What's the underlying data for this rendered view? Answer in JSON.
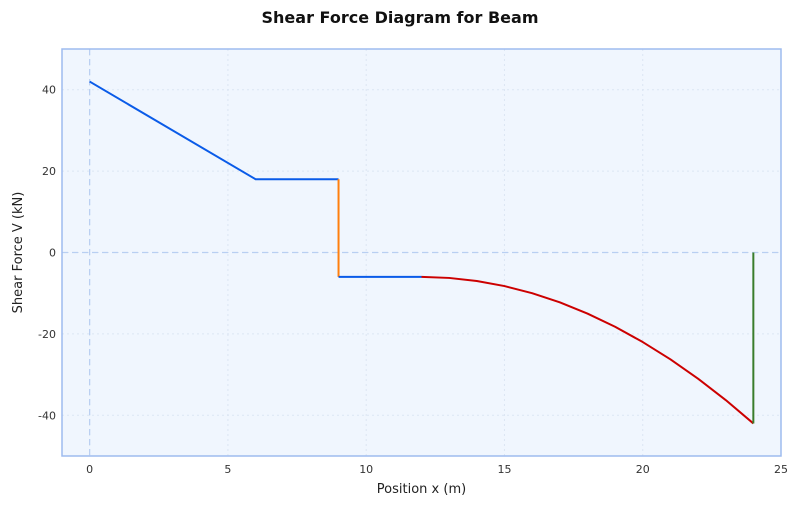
{
  "chart_data": {
    "type": "line",
    "title": "Shear Force Diagram for Beam",
    "xlabel": "Position x (m)",
    "ylabel": "Shear Force V (kN)",
    "xlim": [
      -1,
      25
    ],
    "ylim": [
      -50,
      50
    ],
    "xticks": [
      0,
      5,
      10,
      15,
      20,
      25
    ],
    "yticks": [
      -40,
      -20,
      0,
      20,
      40
    ],
    "grid": true,
    "reference_lines": {
      "x": 0,
      "y": 0,
      "style": "dashed"
    },
    "background_color": "#f0f6fe",
    "series": [
      {
        "color": "#0a5be8",
        "points": [
          [
            0,
            42
          ],
          [
            6,
            18
          ],
          [
            9,
            18
          ]
        ]
      },
      {
        "color": "#ff7f0e",
        "points": [
          [
            9,
            18
          ],
          [
            9,
            -6
          ]
        ]
      },
      {
        "color": "#0a5be8",
        "points": [
          [
            9,
            -6
          ],
          [
            12,
            -6
          ]
        ]
      },
      {
        "color": "#cc0000",
        "points": [
          [
            12,
            -6
          ],
          [
            13,
            -6.25
          ],
          [
            14,
            -7
          ],
          [
            15,
            -8.25
          ],
          [
            16,
            -10
          ],
          [
            17,
            -12.25
          ],
          [
            18,
            -15
          ],
          [
            19,
            -18.25
          ],
          [
            20,
            -22
          ],
          [
            21,
            -26.25
          ],
          [
            22,
            -31
          ],
          [
            23,
            -36.25
          ],
          [
            24,
            -42
          ]
        ]
      },
      {
        "color": "#3a7d2c",
        "points": [
          [
            24,
            -42
          ],
          [
            24,
            0
          ]
        ]
      }
    ]
  }
}
